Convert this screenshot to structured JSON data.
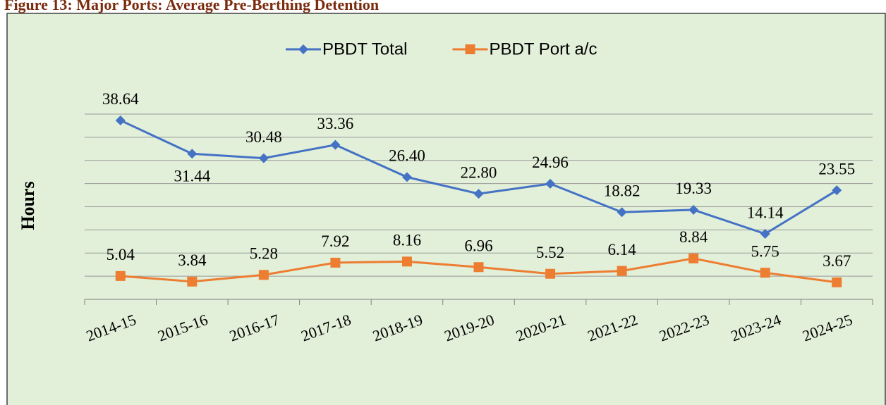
{
  "chart_data": {
    "type": "line",
    "title": "Figure 13: Major Ports: Average Pre-Berthing Detention",
    "y_label": "Hours",
    "categories": [
      "2014-15",
      "2015-16",
      "2016-17",
      "2017-18",
      "2018-19",
      "2019-20",
      "2020-21",
      "2021-22",
      "2022-23",
      "2023-24",
      "2024-25"
    ],
    "series": [
      {
        "name": "PBDT Total",
        "color": "#4472c4",
        "marker": "diamond",
        "values": [
          38.64,
          31.44,
          30.48,
          33.36,
          26.4,
          22.8,
          24.96,
          18.82,
          19.33,
          14.14,
          23.55
        ],
        "value_labels": [
          "38.64",
          "31.44",
          "30.48",
          "33.36",
          "26.40",
          "22.80",
          "24.96",
          "18.82",
          "19.33",
          "14.14",
          "23.55"
        ]
      },
      {
        "name": "PBDT Port a/c",
        "color": "#ed7d31",
        "marker": "square",
        "values": [
          5.04,
          3.84,
          5.28,
          7.92,
          8.16,
          6.96,
          5.52,
          6.14,
          8.84,
          5.75,
          3.67
        ],
        "value_labels": [
          "5.04",
          "3.84",
          "5.28",
          "7.92",
          "8.16",
          "6.96",
          "5.52",
          "6.14",
          "8.84",
          "5.75",
          "3.67"
        ]
      }
    ],
    "ylim": [
      0,
      40
    ],
    "yticks": [
      0,
      5,
      10,
      15,
      20,
      25,
      30,
      35,
      40
    ],
    "grid": true,
    "legend": "top"
  }
}
